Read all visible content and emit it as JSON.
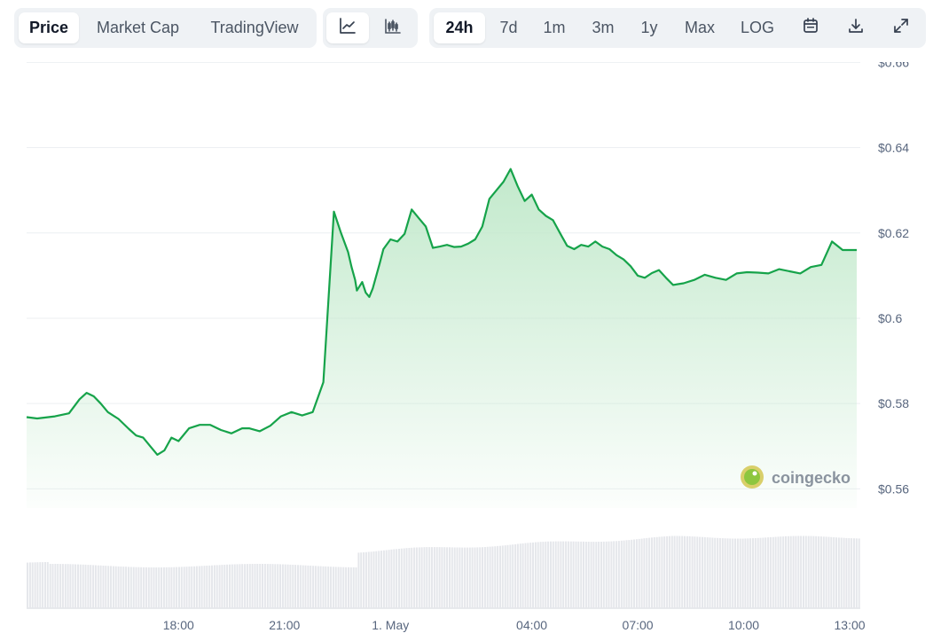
{
  "tabs": {
    "price": "Price",
    "market_cap": "Market Cap",
    "tradingview": "TradingView"
  },
  "chart_types": [
    "line-chart-icon",
    "candlestick-icon"
  ],
  "ranges": {
    "h24": "24h",
    "d7": "7d",
    "m1": "1m",
    "m3": "3m",
    "y1": "1y",
    "max": "Max",
    "log": "LOG"
  },
  "tools": [
    "calendar-icon",
    "download-icon",
    "expand-icon"
  ],
  "watermark": "coingecko",
  "colors": {
    "line": "#16a34a",
    "fill_top": "#bfe8c9",
    "volume": "#e5e7eb",
    "grid": "#eceff2"
  },
  "chart_data": {
    "type": "area",
    "y_ticks": [
      "$0.66",
      "$0.64",
      "$0.62",
      "$0.6",
      "$0.58",
      "$0.56"
    ],
    "y_tick_values": [
      0.66,
      0.64,
      0.62,
      0.6,
      0.58,
      0.56
    ],
    "x_ticks": [
      "18:00",
      "21:00",
      "1. May",
      "04:00",
      "07:00",
      "10:00",
      "13:00"
    ],
    "x_tick_values": [
      18,
      21,
      24,
      28,
      31,
      34,
      37
    ],
    "x_range": [
      13.7,
      37.3
    ],
    "y_range": [
      0.5555,
      0.6555
    ],
    "grid": true,
    "legend": "none",
    "series": [
      {
        "x": [
          13.7,
          14.0,
          14.5,
          14.9,
          15.2,
          15.4,
          15.6,
          15.8,
          16.0,
          16.3,
          16.6,
          16.8,
          17.0,
          17.2,
          17.4,
          17.6,
          17.8,
          18.0,
          18.3,
          18.6,
          18.9,
          19.2,
          19.5,
          19.8,
          20.0,
          20.3,
          20.6,
          20.9,
          21.2,
          21.5,
          21.8,
          22.1,
          22.4,
          22.6,
          22.8,
          22.9,
          23.0,
          23.05,
          23.2,
          23.3,
          23.4,
          23.5,
          23.7,
          23.8,
          24.0,
          24.2,
          24.4,
          24.6,
          24.8,
          25.0,
          25.2,
          25.4,
          25.6,
          25.8,
          26.0,
          26.2,
          26.4,
          26.6,
          26.8,
          27.0,
          27.2,
          27.4,
          27.6,
          27.8,
          28.0,
          28.2,
          28.4,
          28.6,
          28.8,
          29.0,
          29.2,
          29.4,
          29.6,
          29.8,
          30.0,
          30.2,
          30.4,
          30.6,
          30.8,
          31.0,
          31.2,
          31.4,
          31.6,
          31.8,
          32.0,
          32.3,
          32.6,
          32.9,
          33.2,
          33.5,
          33.8,
          34.1,
          34.4,
          34.7,
          35.0,
          35.3,
          35.6,
          35.9,
          36.2,
          36.5,
          36.8,
          36.9,
          37.0,
          37.2
        ],
        "y": [
          0.5768,
          0.5765,
          0.577,
          0.5777,
          0.581,
          0.5825,
          0.5817,
          0.58,
          0.578,
          0.5764,
          0.574,
          0.5725,
          0.572,
          0.57,
          0.568,
          0.569,
          0.572,
          0.5712,
          0.5742,
          0.575,
          0.575,
          0.5738,
          0.573,
          0.5742,
          0.5742,
          0.5735,
          0.5748,
          0.577,
          0.578,
          0.5772,
          0.578,
          0.585,
          0.625,
          0.62,
          0.6155,
          0.612,
          0.609,
          0.6065,
          0.6085,
          0.606,
          0.605,
          0.607,
          0.613,
          0.6162,
          0.6185,
          0.618,
          0.6198,
          0.6255,
          0.6235,
          0.6215,
          0.6165,
          0.6168,
          0.6172,
          0.6167,
          0.6168,
          0.6175,
          0.6185,
          0.6215,
          0.628,
          0.63,
          0.632,
          0.635,
          0.631,
          0.6275,
          0.629,
          0.6255,
          0.624,
          0.623,
          0.62,
          0.617,
          0.6162,
          0.6172,
          0.6168,
          0.618,
          0.6168,
          0.6162,
          0.6148,
          0.6138,
          0.6122,
          0.61,
          0.6095,
          0.6106,
          0.6113,
          0.6095,
          0.6078,
          0.6082,
          0.609,
          0.6102,
          0.6095,
          0.609,
          0.6105,
          0.6108,
          0.6107,
          0.6105,
          0.6115,
          0.611,
          0.6105,
          0.612,
          0.6125,
          0.618,
          0.616,
          0.616,
          0.616,
          0.616
        ]
      }
    ]
  }
}
